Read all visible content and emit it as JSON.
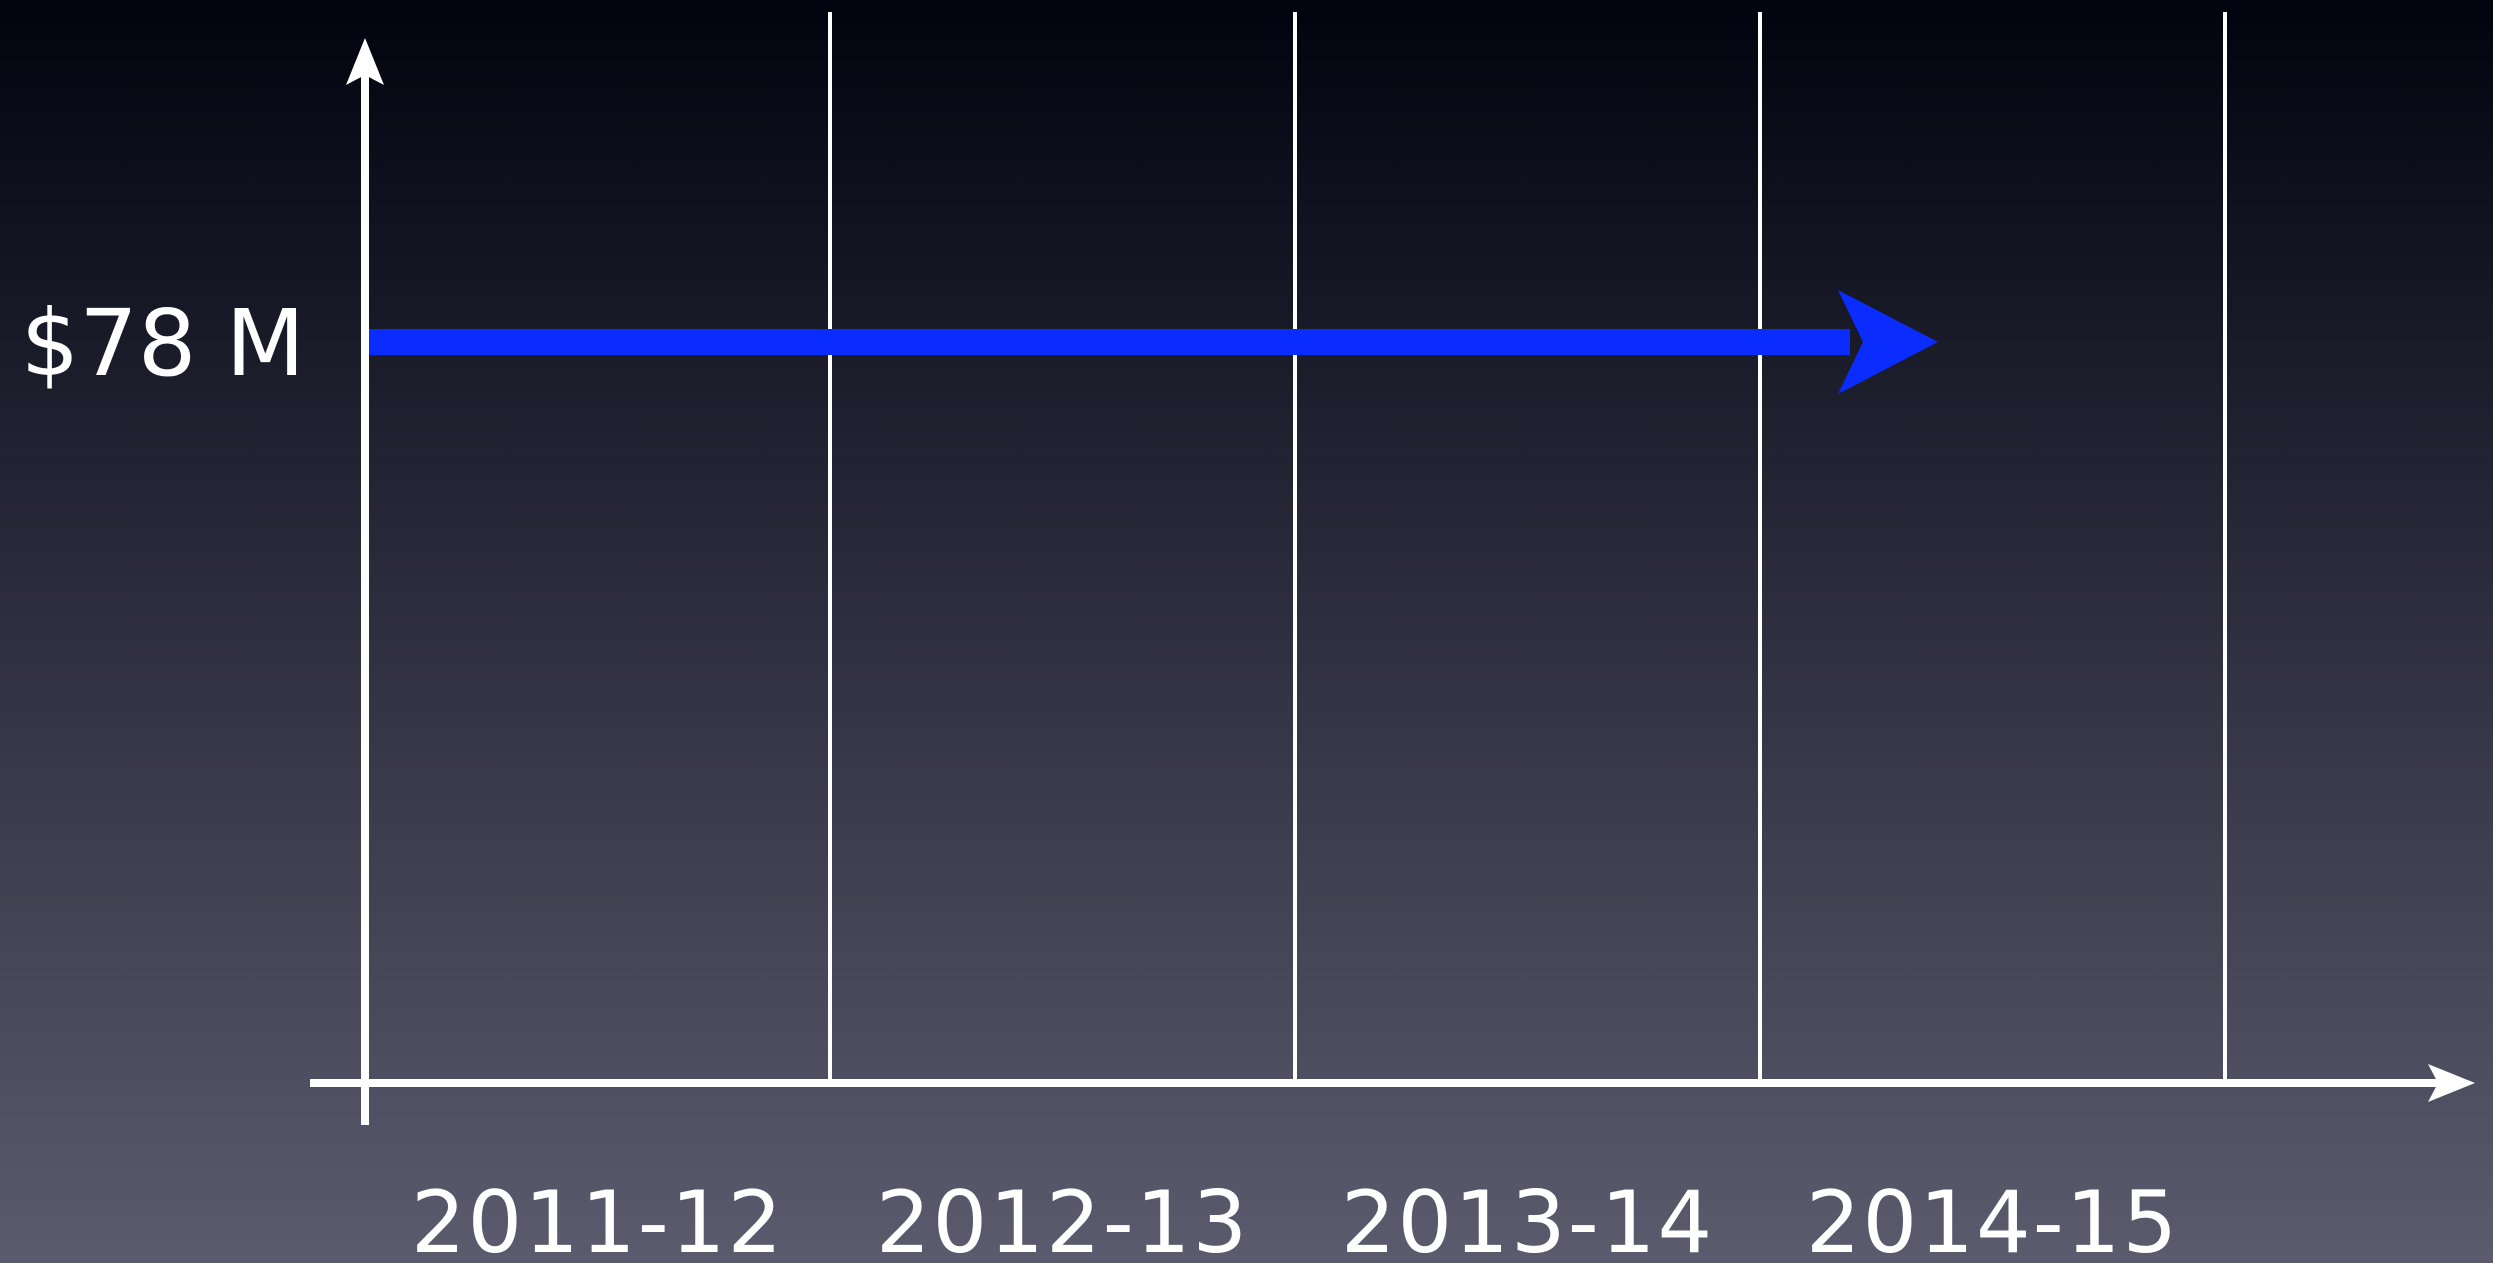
{
  "colors": {
    "background_top": "#01030f",
    "background_bottom": "#5c5b6e",
    "axis": "#ffffff",
    "gridline": "#ffffff",
    "series": "#0a2cff"
  },
  "chart_data": {
    "type": "line",
    "categories": [
      "2011-12",
      "2012-13",
      "2013-14",
      "2014-15"
    ],
    "series": [
      {
        "values": [
          78,
          78,
          78,
          78
        ],
        "label": "$78 M",
        "marker": "arrow"
      }
    ],
    "y_unit": "$M",
    "title": "",
    "xlabel": "",
    "ylabel": "",
    "grid": "vertical",
    "axes_arrows": true
  }
}
